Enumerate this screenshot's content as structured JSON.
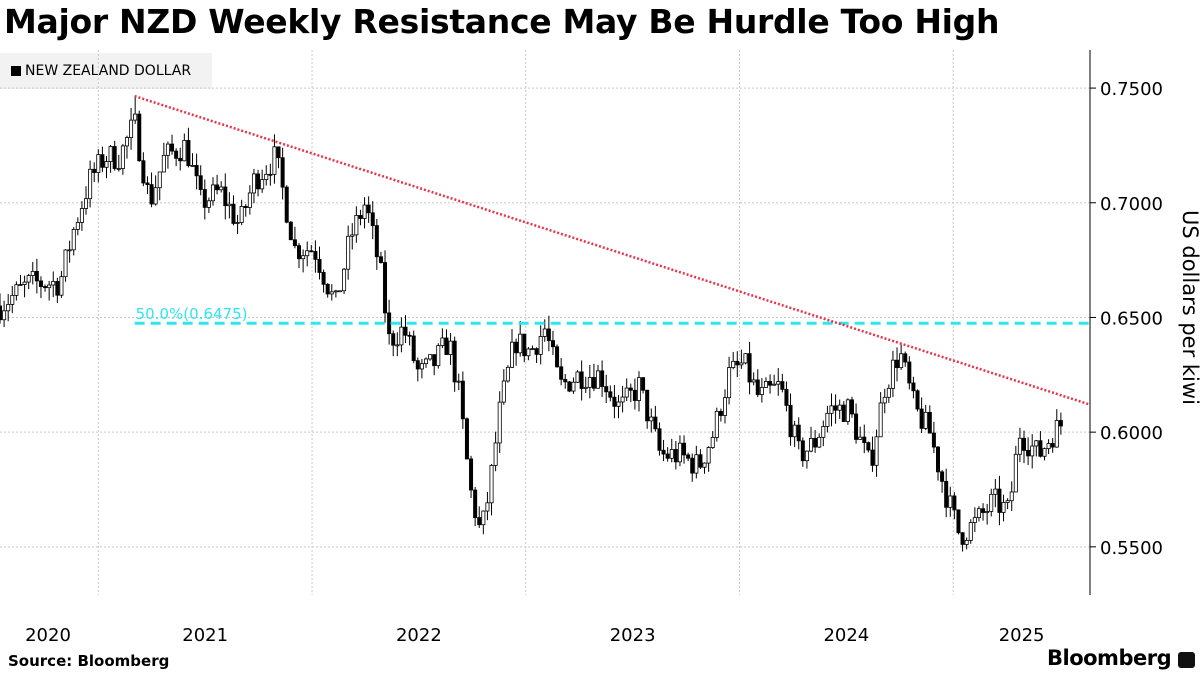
{
  "chart_data": {
    "type": "candlestick",
    "title": "Major NZD Weekly Resistance May Be Hurdle Too High",
    "legend": [
      "NEW ZEALAND DOLLAR"
    ],
    "legend_placement": "top-left",
    "ylabel": "US dollars per kiwi",
    "xlabel": "",
    "ylim": [
      0.529,
      0.7666
    ],
    "xlim": [
      2020.54,
      2025.64
    ],
    "y_ticks": [
      "0.7500",
      "0.7000",
      "0.6500",
      "0.6000",
      "0.5500"
    ],
    "y_tick_values": [
      0.75,
      0.7,
      0.65,
      0.6,
      0.55
    ],
    "x_ticks": [
      "2020",
      "2021",
      "2022",
      "2023",
      "2024",
      "2025"
    ],
    "grid": true,
    "close_keypoints": [
      [
        2020.54,
        0.655
      ],
      [
        2020.68,
        0.665
      ],
      [
        2020.82,
        0.665
      ],
      [
        2020.89,
        0.69
      ],
      [
        2020.96,
        0.71
      ],
      [
        2021.03,
        0.72
      ],
      [
        2021.1,
        0.72
      ],
      [
        2021.17,
        0.735
      ],
      [
        2021.24,
        0.7
      ],
      [
        2021.31,
        0.72
      ],
      [
        2021.41,
        0.725
      ],
      [
        2021.48,
        0.7
      ],
      [
        2021.57,
        0.705
      ],
      [
        2021.66,
        0.69
      ],
      [
        2021.73,
        0.71
      ],
      [
        2021.83,
        0.72
      ],
      [
        2021.92,
        0.68
      ],
      [
        2022.01,
        0.68
      ],
      [
        2022.11,
        0.655
      ],
      [
        2022.18,
        0.685
      ],
      [
        2022.25,
        0.7
      ],
      [
        2022.32,
        0.67
      ],
      [
        2022.36,
        0.64
      ],
      [
        2022.43,
        0.645
      ],
      [
        2022.5,
        0.625
      ],
      [
        2022.57,
        0.63
      ],
      [
        2022.64,
        0.64
      ],
      [
        2022.69,
        0.615
      ],
      [
        2022.74,
        0.575
      ],
      [
        2022.79,
        0.555
      ],
      [
        2022.83,
        0.575
      ],
      [
        2022.88,
        0.61
      ],
      [
        2022.95,
        0.64
      ],
      [
        2023.02,
        0.635
      ],
      [
        2023.09,
        0.645
      ],
      [
        2023.16,
        0.62
      ],
      [
        2023.25,
        0.625
      ],
      [
        2023.35,
        0.625
      ],
      [
        2023.44,
        0.61
      ],
      [
        2023.53,
        0.62
      ],
      [
        2023.63,
        0.59
      ],
      [
        2023.72,
        0.59
      ],
      [
        2023.81,
        0.585
      ],
      [
        2023.88,
        0.6
      ],
      [
        2023.95,
        0.625
      ],
      [
        2024.02,
        0.63
      ],
      [
        2024.09,
        0.615
      ],
      [
        2024.19,
        0.62
      ],
      [
        2024.28,
        0.59
      ],
      [
        2024.35,
        0.595
      ],
      [
        2024.42,
        0.61
      ],
      [
        2024.51,
        0.61
      ],
      [
        2024.61,
        0.585
      ],
      [
        2024.68,
        0.62
      ],
      [
        2024.75,
        0.635
      ],
      [
        2024.82,
        0.61
      ],
      [
        2024.89,
        0.6
      ],
      [
        2024.96,
        0.575
      ],
      [
        2025.03,
        0.555
      ],
      [
        2025.1,
        0.56
      ],
      [
        2025.19,
        0.57
      ],
      [
        2025.26,
        0.565
      ],
      [
        2025.31,
        0.6
      ],
      [
        2025.4,
        0.59
      ],
      [
        2025.47,
        0.6
      ],
      [
        2025.52,
        0.605
      ]
    ],
    "peak_high": [
      2021.17,
      0.7465
    ],
    "resistance_line": {
      "from": [
        2021.17,
        0.7465
      ],
      "to": [
        2025.64,
        0.612
      ],
      "color": "#e8334a",
      "style": "dotted"
    },
    "fib_line": {
      "label": "50.0%(0.6475)",
      "value": 0.6475,
      "from_x": 2021.17,
      "color": "#2ee6f0",
      "style": "dashed"
    }
  },
  "footer": {
    "source": "Source: Bloomberg",
    "brand": "Bloomberg"
  }
}
